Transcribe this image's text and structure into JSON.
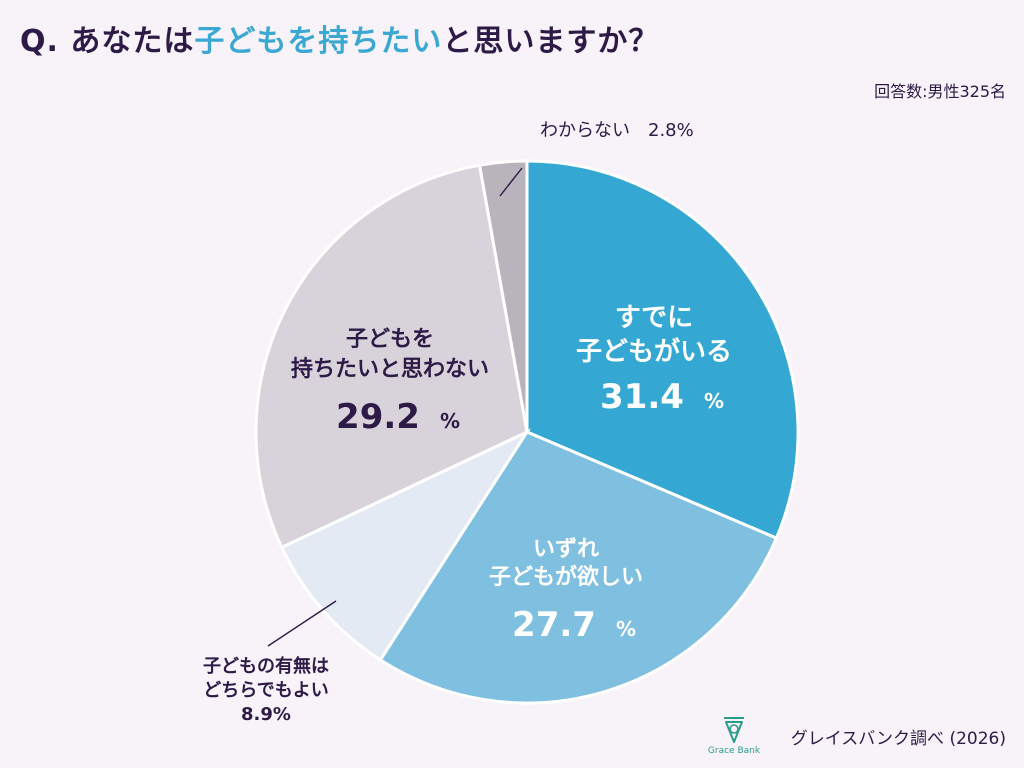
{
  "header": {
    "title_pre": "Q. あなたは",
    "title_highlight": "子どもを持ちたい",
    "title_post": "と思いますか？",
    "sample": "回答数:男性325名"
  },
  "footer": {
    "source": "グレイスバンク調べ (2026)",
    "logo_text": "Grace Bank"
  },
  "colors": {
    "highlight": "#3aa8d2",
    "text": "#2e1a47",
    "background": "#f7f3f8"
  },
  "chart_data": {
    "type": "pie",
    "unit": "%",
    "slices": [
      {
        "lines": [
          "すでに",
          "子どもがいる"
        ],
        "value": 31.4,
        "value_text": "31.4",
        "color": "#34a8d3",
        "text_color": "#ffffff"
      },
      {
        "lines": [
          "いずれ",
          "子どもが欲しい"
        ],
        "value": 27.7,
        "value_text": "27.7",
        "color": "#7fc0e0",
        "text_color": "#ffffff"
      },
      {
        "lines": [
          "子どもの有無は",
          "どちらでもよい"
        ],
        "value": 8.9,
        "value_text": "8.9%",
        "color": "#e4eaf3",
        "text_color": "#2e1a47"
      },
      {
        "lines": [
          "子どもを",
          "持ちたいと思わない"
        ],
        "value": 29.2,
        "value_text": "29.2",
        "color": "#d8d3da",
        "text_color": "#2e1a47"
      },
      {
        "lines": [
          "わからない　2.8%"
        ],
        "value": 2.8,
        "value_text": "",
        "color": "#b9b3bc",
        "text_color": "#2e1a47"
      }
    ]
  }
}
